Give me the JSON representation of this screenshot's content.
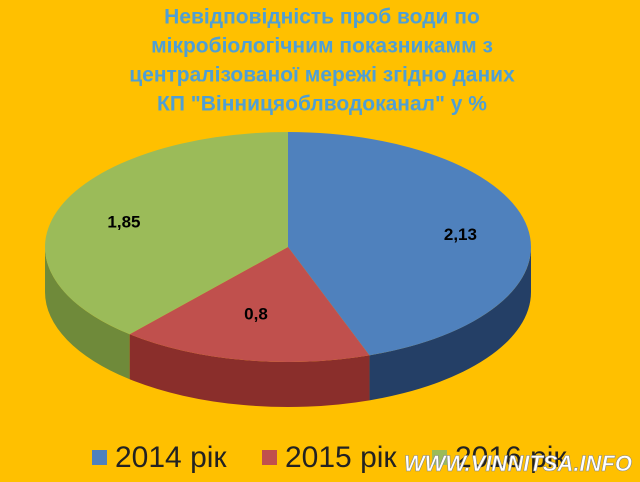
{
  "chart_data": {
    "type": "pie3d",
    "title": [
      "Невідповідність  проб води по",
      "мікробіологічним показникамм з",
      "централізованої мережі згідно даних",
      "КП \"Вінницяоблводоканал\" у %"
    ],
    "categories": [
      "2014 рік",
      "2015 рік",
      "2016 рік"
    ],
    "values": [
      2.13,
      0.8,
      1.85
    ],
    "value_labels": [
      "2,13",
      "0,8",
      "1,85"
    ],
    "colors": [
      "#4f81bd",
      "#c0504d",
      "#9bbb59"
    ],
    "side_colors": [
      "#243f66",
      "#8a2e2b",
      "#6f8a3a"
    ],
    "legend": "bottom"
  },
  "watermark": "WWW.VINNITSA.INFO"
}
